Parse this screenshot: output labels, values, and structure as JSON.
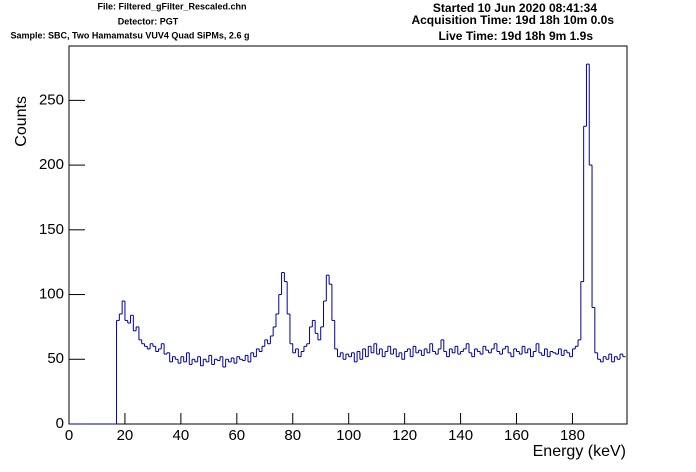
{
  "chart_data": {
    "type": "histogram",
    "header_left": [
      "File: Filtered_gFilter_Rescaled.chn",
      "Detector: PGT",
      "Sample: SBC, Two Hamamatsu VUV4 Quad SiPMs, 2.6 g"
    ],
    "header_right": [
      "Started 10 Jun 2020 08:41:34",
      "Acquisition Time: 19d 18h 10m 0.0s",
      "Live Time: 19d 18h 9m 1.9s"
    ],
    "xlabel": "Energy (keV)",
    "ylabel": "Counts",
    "color": "#000099",
    "bins": [
      0,
      1,
      2,
      3,
      4,
      5,
      6,
      7,
      8,
      9,
      10,
      11,
      12,
      13,
      14,
      15,
      16,
      17,
      18,
      19,
      20,
      21,
      22,
      23,
      24,
      25,
      26,
      27,
      28,
      29,
      30,
      31,
      32,
      33,
      34,
      35,
      36,
      37,
      38,
      39,
      40,
      41,
      42,
      43,
      44,
      45,
      46,
      47,
      48,
      49,
      50,
      51,
      52,
      53,
      54,
      55,
      56,
      57,
      58,
      59,
      60,
      61,
      62,
      63,
      64,
      65,
      66,
      67,
      68,
      69,
      70,
      71,
      72,
      73,
      74,
      75,
      76,
      77,
      78,
      79,
      80,
      81,
      82,
      83,
      84,
      85,
      86,
      87,
      88,
      89,
      90,
      91,
      92,
      93,
      94,
      95,
      96,
      97,
      98,
      99,
      100,
      101,
      102,
      103,
      104,
      105,
      106,
      107,
      108,
      109,
      110,
      111,
      112,
      113,
      114,
      115,
      116,
      117,
      118,
      119,
      120,
      121,
      122,
      123,
      124,
      125,
      126,
      127,
      128,
      129,
      130,
      131,
      132,
      133,
      134,
      135,
      136,
      137,
      138,
      139,
      140,
      141,
      142,
      143,
      144,
      145,
      146,
      147,
      148,
      149,
      150,
      151,
      152,
      153,
      154,
      155,
      156,
      157,
      158,
      159,
      160,
      161,
      162,
      163,
      164,
      165,
      166,
      167,
      168,
      169,
      170,
      171,
      172,
      173,
      174,
      175,
      176,
      177,
      178,
      179,
      180,
      181,
      182,
      183,
      184,
      185,
      186,
      187,
      188,
      189,
      190,
      191,
      192,
      193,
      194,
      195,
      196,
      197,
      198,
      199
    ],
    "values": [
      0,
      0,
      0,
      0,
      0,
      0,
      0,
      0,
      0,
      0,
      0,
      0,
      0,
      0,
      0,
      0,
      0,
      80,
      85,
      95,
      80,
      78,
      84,
      72,
      75,
      65,
      62,
      60,
      58,
      62,
      60,
      56,
      58,
      62,
      54,
      55,
      48,
      52,
      50,
      47,
      52,
      48,
      55,
      46,
      50,
      48,
      52,
      45,
      50,
      48,
      53,
      46,
      50,
      49,
      52,
      44,
      50,
      48,
      51,
      47,
      52,
      50,
      49,
      53,
      48,
      55,
      52,
      58,
      56,
      60,
      65,
      62,
      68,
      75,
      85,
      100,
      117,
      110,
      85,
      62,
      55,
      58,
      52,
      56,
      60,
      62,
      75,
      80,
      70,
      65,
      75,
      95,
      115,
      108,
      80,
      58,
      52,
      55,
      50,
      54,
      52,
      55,
      48,
      56,
      50,
      58,
      52,
      60,
      55,
      62,
      54,
      58,
      52,
      56,
      60,
      54,
      58,
      52,
      55,
      50,
      56,
      58,
      52,
      60,
      55,
      57,
      53,
      58,
      55,
      62,
      56,
      54,
      58,
      65,
      56,
      52,
      58,
      55,
      60,
      54,
      56,
      58,
      62,
      55,
      52,
      58,
      56,
      54,
      60,
      57,
      55,
      58,
      62,
      56,
      54,
      58,
      60,
      55,
      52,
      58,
      56,
      54,
      60,
      55,
      58,
      52,
      56,
      62,
      55,
      53,
      58,
      52,
      56,
      55,
      54,
      58,
      53,
      57,
      55,
      52,
      58,
      60,
      65,
      110,
      230,
      278,
      200,
      90,
      55,
      50,
      48,
      52,
      50,
      54,
      48,
      52,
      50,
      54,
      52
    ],
    "xlim": [
      0,
      199.5
    ],
    "ylim": [
      0,
      292
    ],
    "xticks": [
      0,
      20,
      40,
      60,
      80,
      100,
      120,
      140,
      160,
      180
    ],
    "yticks": [
      0,
      50,
      100,
      150,
      200,
      250
    ]
  }
}
